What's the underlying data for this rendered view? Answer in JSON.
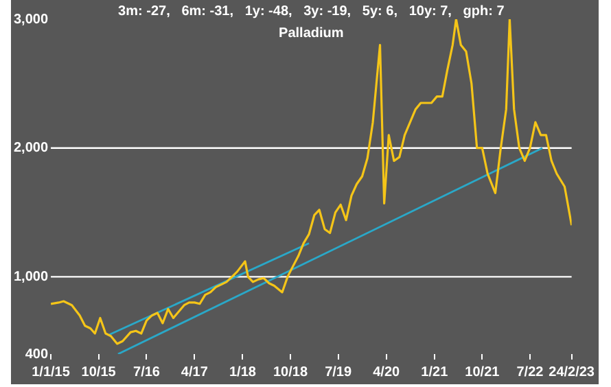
{
  "chart_data": {
    "type": "line",
    "title": "Palladium",
    "subtitle": "3m: -27,   6m: -31,   1y: -48,   3y: -19,   5y: 6,   10y: 7,   gph: 7",
    "x": [
      "2015-01-01",
      "2015-02-15",
      "2015-03-15",
      "2015-05-01",
      "2015-06-15",
      "2015-07-15",
      "2015-08-15",
      "2015-09-10",
      "2015-10-10",
      "2015-11-10",
      "2015-12-10",
      "2016-01-15",
      "2016-02-15",
      "2016-04-01",
      "2016-05-01",
      "2016-06-01",
      "2016-07-01",
      "2016-08-01",
      "2016-09-01",
      "2016-10-01",
      "2016-11-01",
      "2016-12-01",
      "2017-02-01",
      "2017-03-01",
      "2017-04-01",
      "2017-05-01",
      "2017-06-01",
      "2017-07-01",
      "2017-08-01",
      "2017-09-01",
      "2017-10-01",
      "2017-11-01",
      "2017-12-01",
      "2018-01-15",
      "2018-02-01",
      "2018-03-01",
      "2018-04-01",
      "2018-05-01",
      "2018-06-01",
      "2018-07-01",
      "2018-08-15",
      "2018-09-15",
      "2018-10-15",
      "2018-11-15",
      "2018-12-15",
      "2019-01-15",
      "2019-02-15",
      "2019-03-15",
      "2019-04-15",
      "2019-05-15",
      "2019-06-15",
      "2019-07-15",
      "2019-08-15",
      "2019-09-15",
      "2019-10-15",
      "2019-11-15",
      "2019-12-15",
      "2020-01-15",
      "2020-02-25",
      "2020-03-20",
      "2020-04-15",
      "2020-05-15",
      "2020-06-15",
      "2020-07-15",
      "2020-08-15",
      "2020-09-15",
      "2020-10-15",
      "2020-11-15",
      "2020-12-15",
      "2021-01-15",
      "2021-02-15",
      "2021-03-15",
      "2021-04-15",
      "2021-05-05",
      "2021-06-01",
      "2021-07-01",
      "2021-08-01",
      "2021-09-01",
      "2021-10-01",
      "2021-11-01",
      "2021-12-15",
      "2022-01-15",
      "2022-02-15",
      "2022-03-07",
      "2022-04-01",
      "2022-05-01",
      "2022-06-01",
      "2022-07-01",
      "2022-08-01",
      "2022-09-01",
      "2022-10-01",
      "2022-11-01",
      "2022-12-01",
      "2023-01-15",
      "2023-02-24"
    ],
    "series": [
      {
        "color": "#f5c518",
        "values": [
          790,
          800,
          810,
          780,
          700,
          620,
          600,
          560,
          680,
          560,
          540,
          480,
          500,
          570,
          580,
          560,
          660,
          700,
          720,
          640,
          750,
          680,
          780,
          800,
          800,
          790,
          860,
          880,
          920,
          940,
          960,
          1000,
          1040,
          1120,
          1000,
          960,
          980,
          990,
          950,
          930,
          880,
          1000,
          1080,
          1160,
          1260,
          1330,
          1480,
          1520,
          1370,
          1340,
          1500,
          1560,
          1440,
          1630,
          1720,
          1780,
          1920,
          2200,
          2800,
          1570,
          2100,
          1900,
          1930,
          2100,
          2200,
          2300,
          2350,
          2350,
          2350,
          2400,
          2400,
          2600,
          2800,
          3000,
          2800,
          2750,
          2500,
          2000,
          2000,
          1800,
          1650,
          2000,
          2300,
          3000,
          2300,
          2000,
          1900,
          2000,
          2200,
          2100,
          2100,
          1900,
          1800,
          1700,
          1400
        ]
      },
      {
        "type": "line",
        "color": "#2aa8c8",
        "x": [
          "2015-12-01",
          "2019-01-15"
        ],
        "values": [
          550,
          1260
        ]
      },
      {
        "type": "line",
        "color": "#2aa8c8",
        "x": [
          "2016-01-20",
          "2022-09-10"
        ],
        "values": [
          400,
          2000
        ]
      }
    ],
    "xlim": [
      "2015-01-01",
      "2023-02-24"
    ],
    "xticks": [
      {
        "value": "2015-01-01",
        "label": "1/1/15"
      },
      {
        "value": "2015-10-01",
        "label": "10/15"
      },
      {
        "value": "2016-07-01",
        "label": "7/16"
      },
      {
        "value": "2017-04-01",
        "label": "4/17"
      },
      {
        "value": "2018-01-01",
        "label": "1/18"
      },
      {
        "value": "2018-10-01",
        "label": "10/18"
      },
      {
        "value": "2019-07-01",
        "label": "7/19"
      },
      {
        "value": "2020-04-01",
        "label": "4/20"
      },
      {
        "value": "2021-01-01",
        "label": "1/21"
      },
      {
        "value": "2021-10-01",
        "label": "10/21"
      },
      {
        "value": "2022-07-01",
        "label": "7/22"
      },
      {
        "value": "2023-02-24",
        "label": "24/2/23"
      }
    ],
    "ylim": [
      400,
      3000
    ],
    "yticks": [
      400,
      {
        "value": 1000,
        "label": "1,000"
      },
      {
        "value": 2000,
        "label": "2,000"
      },
      {
        "value": 3000,
        "label": "3,000"
      }
    ],
    "ref_lines": [
      {
        "axis": "y",
        "value": 1000,
        "color": "#ffffff"
      },
      {
        "axis": "y",
        "value": 2000,
        "color": "#ffffff"
      }
    ],
    "marker": "none"
  }
}
